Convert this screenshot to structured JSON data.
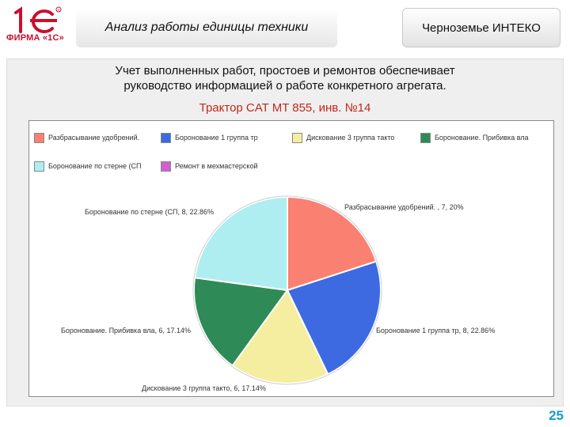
{
  "logo": {
    "mark": "1С",
    "company": "ФИРМА «1С»"
  },
  "header": {
    "title": "Анализ работы единицы техники",
    "company": "Черноземье ИНТЕКО"
  },
  "description": [
    "Учет выполненных работ, простоев и ремонтов обеспечивает",
    "руководство информацией о работе конкретного агрегата."
  ],
  "subtitle": "Трактор CAT MT 855, инв. №14",
  "chart_data": {
    "type": "pie",
    "legend_position": "top",
    "slices": [
      {
        "legend": "Разбрасывание удобрений.",
        "label": "Разбрасывание удобрений. , 7, 20%",
        "value": 7,
        "percent": 20.0,
        "color": "#fa8072"
      },
      {
        "legend": "Боронование 1 группа тр",
        "label": "Боронование 1 группа тр, 8, 22.86%",
        "value": 8,
        "percent": 22.86,
        "color": "#3d6ae0"
      },
      {
        "legend": "Дискование 3 группа такто",
        "label": "Дискование 3 группа такто, 6, 17.14%",
        "value": 6,
        "percent": 17.14,
        "color": "#f5eea0"
      },
      {
        "legend": "Боронование. Прибивка вла",
        "label": "Боронование. Прибивка вла, 6, 17.14%",
        "value": 6,
        "percent": 17.14,
        "color": "#2e8b57"
      },
      {
        "legend": "Боронование по стерне (СП",
        "label": "Боронование по стерне (СП, 8, 22.86%",
        "value": 8,
        "percent": 22.86,
        "color": "#aeeef0"
      },
      {
        "legend": "Ремонт в мехмастерской",
        "label": "",
        "value": 0,
        "percent": 0,
        "color": "#d15fd1"
      }
    ]
  },
  "page_number": "25",
  "colors": {
    "brand_red": "#c8102e",
    "accent_blue": "#1a9ad0",
    "subtitle_red": "#c0281a"
  }
}
